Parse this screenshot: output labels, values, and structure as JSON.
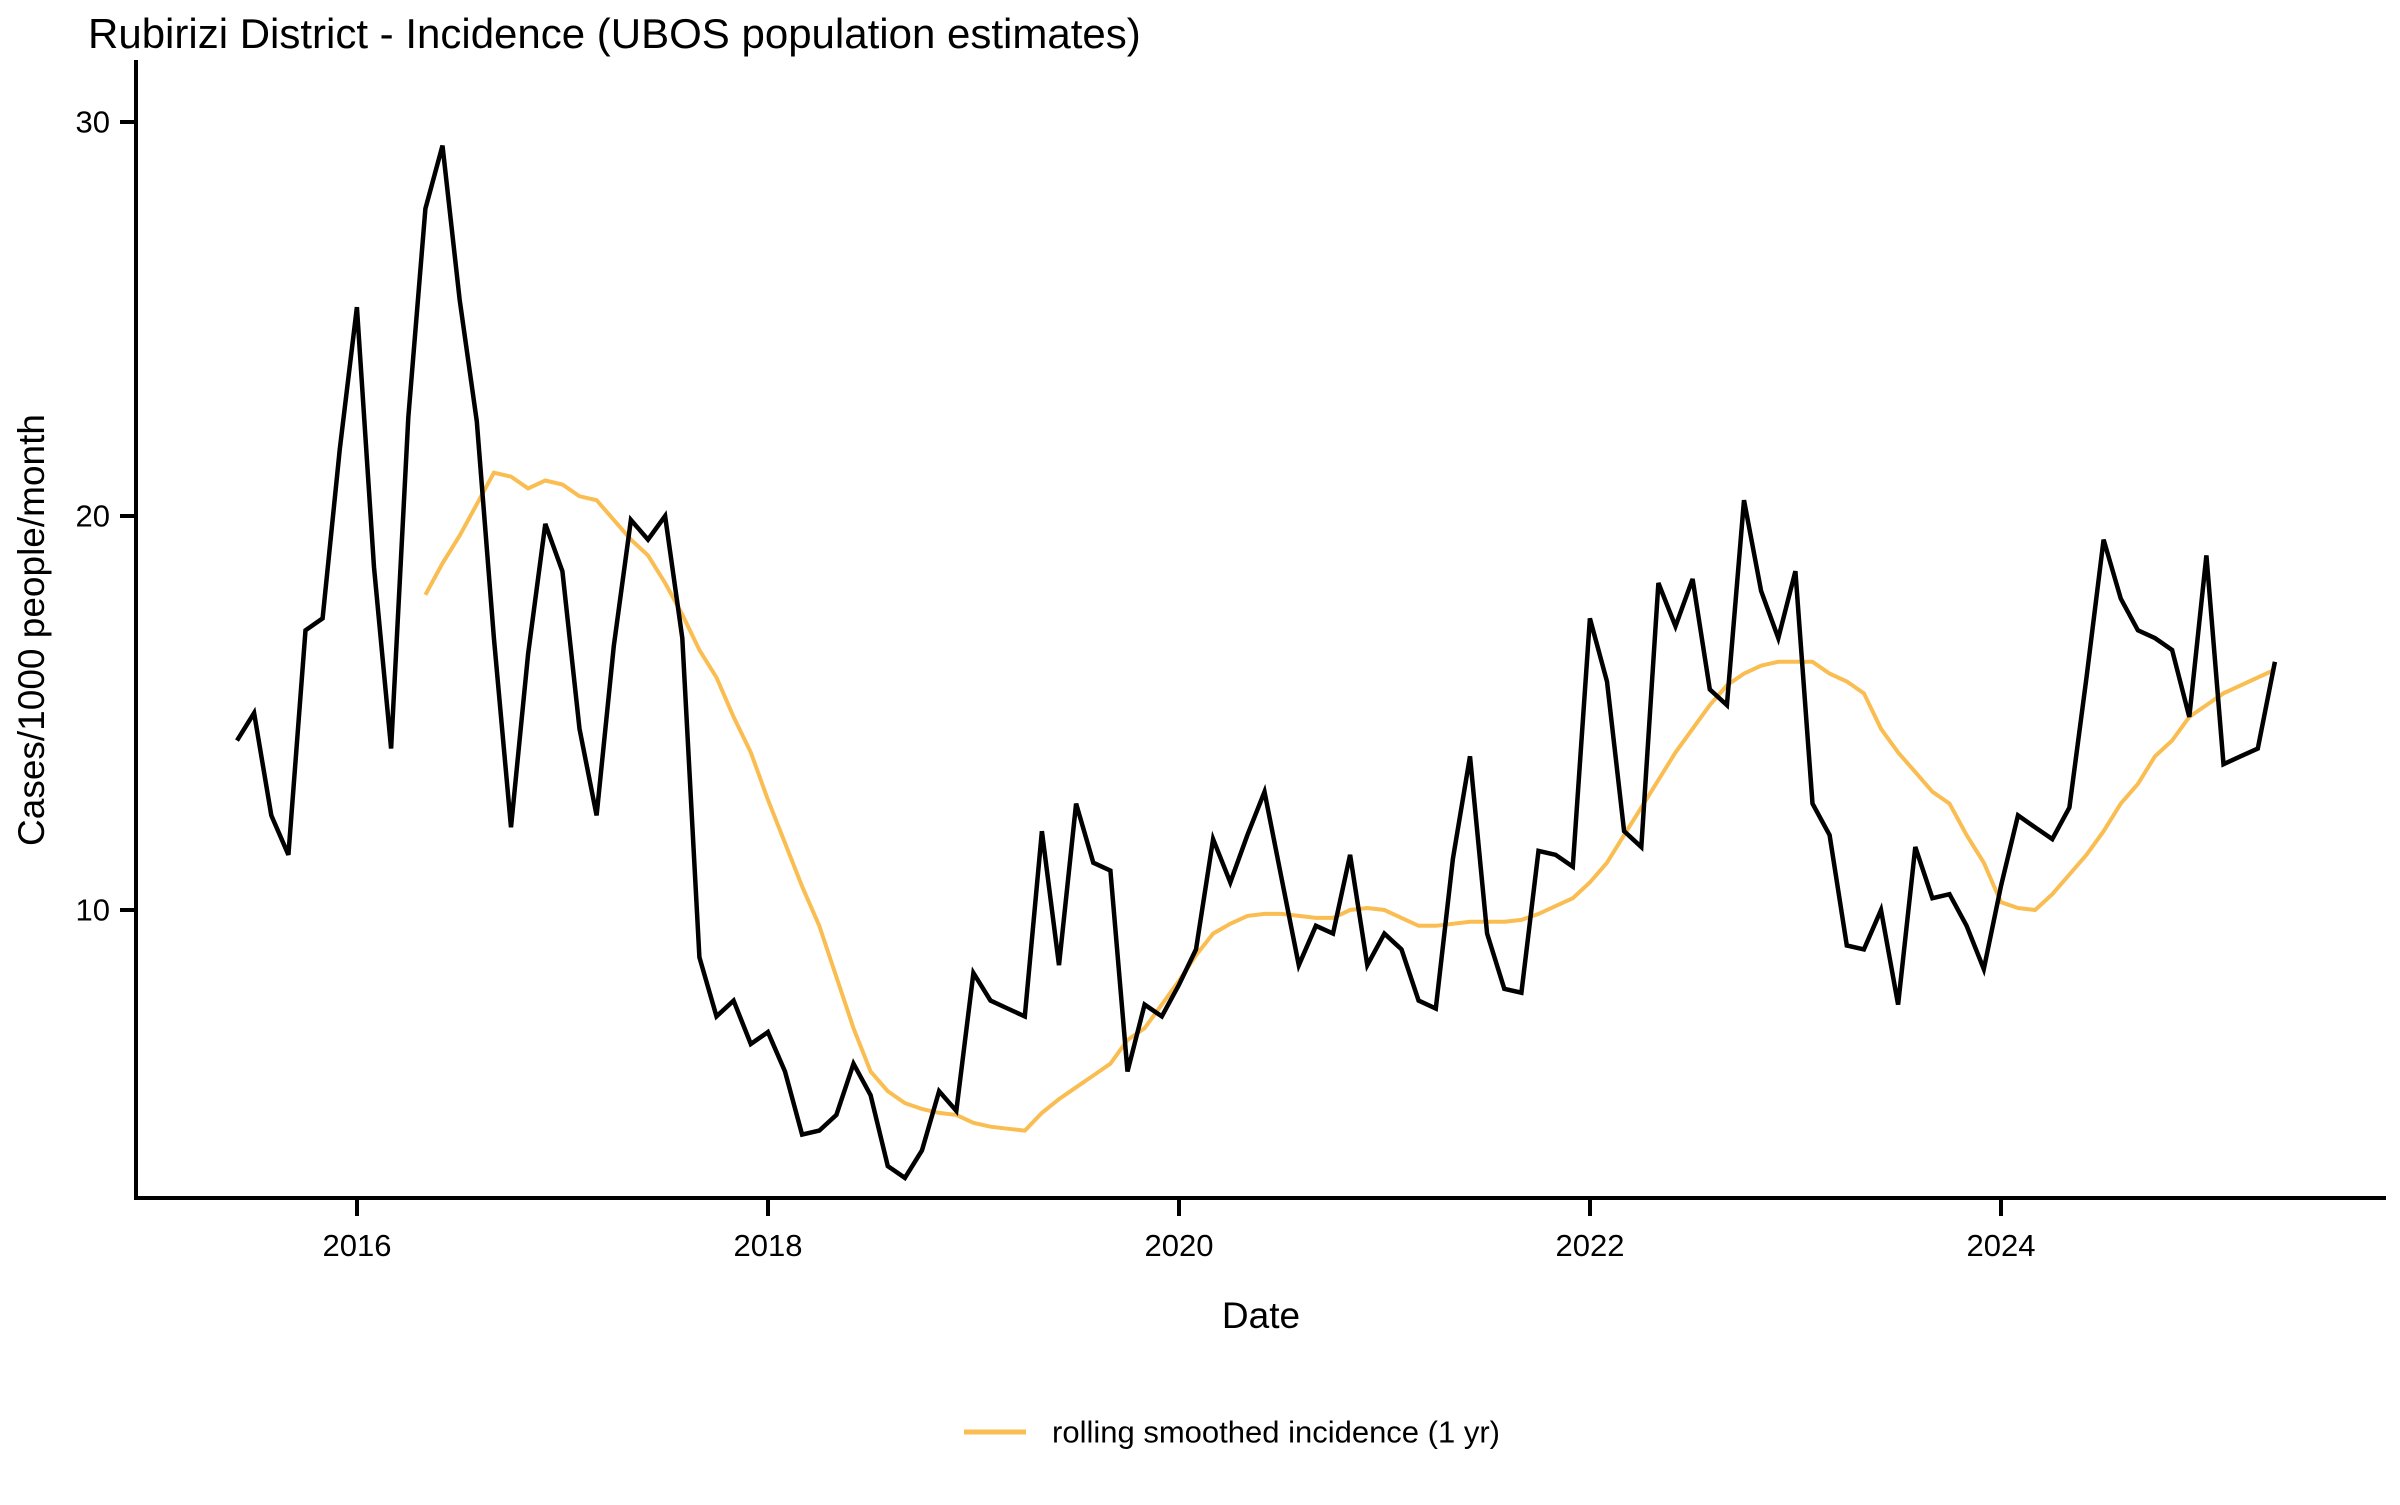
{
  "title": "Rubirizi District - Incidence (UBOS population estimates)",
  "legend": {
    "label": "rolling smoothed incidence (1 yr)",
    "line_color": "#FABD52"
  },
  "x_axis": {
    "label": "Date",
    "tick_labels": [
      "2016",
      "2018",
      "2020",
      "2022",
      "2024"
    ]
  },
  "y_axis": {
    "label": "Cases/1000 people/month",
    "tick_labels": [
      "30",
      "20",
      "10"
    ]
  },
  "chart_data": {
    "type": "line",
    "title": "Rubirizi District - Incidence (UBOS population estimates)",
    "xlabel": "Date",
    "ylabel": "Cases/1000 people/month",
    "x_start": "2015-06",
    "x_end": "2025-05",
    "frequency": "monthly",
    "x_tick_labels": [
      "2016",
      "2018",
      "2020",
      "2022",
      "2024"
    ],
    "yticks": [
      10,
      20,
      30
    ],
    "ylim": [
      2.7,
      30.9
    ],
    "grid": false,
    "legend_position": "bottom",
    "series": [
      {
        "name": "monthly incidence",
        "color": "#000000",
        "start_index": 0,
        "values": [
          14.3,
          15.0,
          12.4,
          11.4,
          17.1,
          17.4,
          21.7,
          25.3,
          18.7,
          14.1,
          22.5,
          27.8,
          29.4,
          25.5,
          22.4,
          16.9,
          12.1,
          16.5,
          19.8,
          18.6,
          14.6,
          12.4,
          16.7,
          19.9,
          19.4,
          20.0,
          16.9,
          8.8,
          7.3,
          7.7,
          6.6,
          6.9,
          5.9,
          4.3,
          4.4,
          4.8,
          6.1,
          5.3,
          3.5,
          3.2,
          3.9,
          5.4,
          4.9,
          8.4,
          7.7,
          7.5,
          7.3,
          12.0,
          8.6,
          12.7,
          11.2,
          11.0,
          5.9,
          7.6,
          7.3,
          8.1,
          9.0,
          11.8,
          10.7,
          11.9,
          13.0,
          10.8,
          8.6,
          9.6,
          9.4,
          11.4,
          8.6,
          9.4,
          9.0,
          7.7,
          7.5,
          11.3,
          13.9,
          9.4,
          8.0,
          7.9,
          11.5,
          11.4,
          11.1,
          17.4,
          15.8,
          12.0,
          11.6,
          18.3,
          17.2,
          18.4,
          15.6,
          15.2,
          20.4,
          18.1,
          16.9,
          18.6,
          12.7,
          11.9,
          9.1,
          9.0,
          10.0,
          7.6,
          11.6,
          10.3,
          10.4,
          9.6,
          8.5,
          10.6,
          12.4,
          12.1,
          11.8,
          12.6,
          15.9,
          19.4,
          17.9,
          17.1,
          16.9,
          16.6,
          14.9,
          19.0,
          13.7,
          13.9,
          14.1,
          16.3
        ]
      },
      {
        "name": "rolling smoothed incidence (1 yr)",
        "color": "#FABD52",
        "start_index": 11,
        "values": [
          18.0,
          18.8,
          19.5,
          20.3,
          21.1,
          21.0,
          20.7,
          20.9,
          20.8,
          20.5,
          20.4,
          19.9,
          19.4,
          19.0,
          18.3,
          17.5,
          16.6,
          15.9,
          14.9,
          14.0,
          12.8,
          11.7,
          10.6,
          9.6,
          8.3,
          7.0,
          5.9,
          5.4,
          5.1,
          4.95,
          4.85,
          4.8,
          4.6,
          4.5,
          4.45,
          4.4,
          4.85,
          5.2,
          5.5,
          5.8,
          6.1,
          6.7,
          7.0,
          7.6,
          8.2,
          8.85,
          9.4,
          9.65,
          9.85,
          9.9,
          9.9,
          9.85,
          9.8,
          9.8,
          10.0,
          10.05,
          10.0,
          9.8,
          9.6,
          9.6,
          9.65,
          9.7,
          9.7,
          9.7,
          9.75,
          9.9,
          10.1,
          10.3,
          10.7,
          11.2,
          11.9,
          12.6,
          13.3,
          14.0,
          14.6,
          15.2,
          15.7,
          16.0,
          16.2,
          16.3,
          16.3,
          16.3,
          16.0,
          15.8,
          15.5,
          14.6,
          14.0,
          13.5,
          13.0,
          12.7,
          11.9,
          11.2,
          10.2,
          10.05,
          10.0,
          10.4,
          10.9,
          11.4,
          12.0,
          12.7,
          13.2,
          13.9,
          14.3,
          14.9,
          15.2,
          15.5,
          15.7,
          15.9,
          16.1
        ]
      }
    ]
  }
}
